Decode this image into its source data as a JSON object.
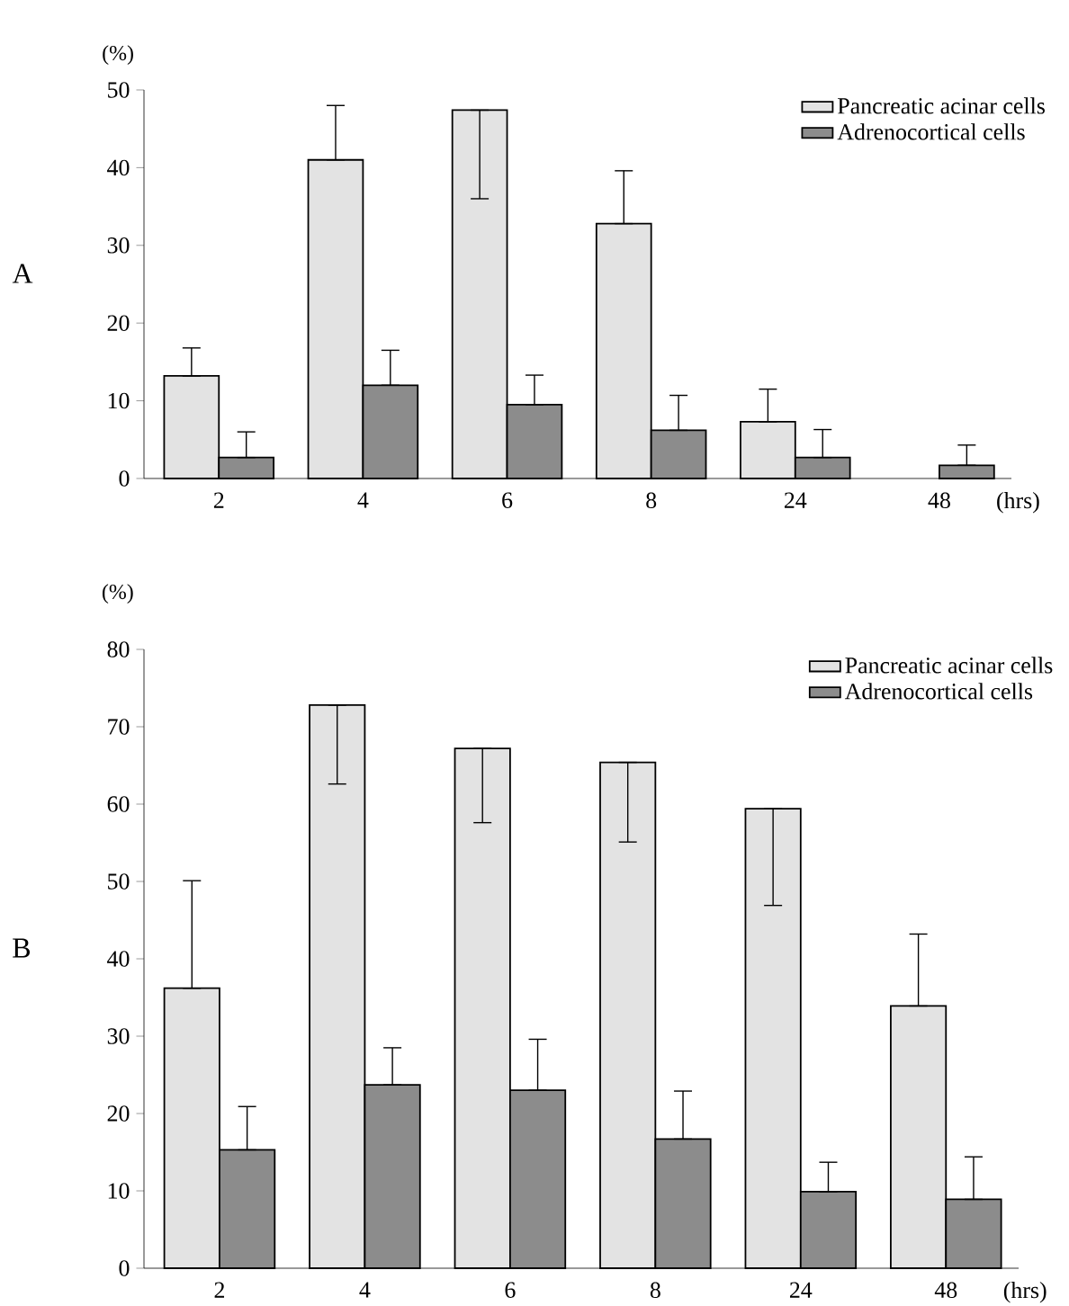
{
  "chart_data": [
    {
      "type": "bar",
      "title": "A",
      "ylabel": "(%)",
      "xlabel": "(hrs)",
      "categories": [
        "2",
        "4",
        "6",
        "8",
        "24",
        "48"
      ],
      "ylim": [
        0,
        50
      ],
      "yticks": [
        0,
        10,
        20,
        30,
        40,
        50
      ],
      "legend": "top right",
      "grid": false,
      "series": [
        {
          "name": "Pancreatic acinar cells",
          "color": "#e3e3e3",
          "values": [
            13.2,
            41,
            47.4,
            32.8,
            7.3,
            null
          ],
          "errors": [
            [
              13.2,
              16.8
            ],
            [
              41,
              48
            ],
            [
              36,
              47.4
            ],
            [
              32.8,
              39.6
            ],
            [
              7.3,
              11.5
            ],
            null
          ]
        },
        {
          "name": "Adrenocortical cells",
          "color": "#8c8c8c",
          "values": [
            2.7,
            12,
            9.5,
            6.2,
            2.7,
            1.7
          ],
          "errors": [
            [
              2.7,
              6
            ],
            [
              12,
              16.5
            ],
            [
              9.5,
              13.3
            ],
            [
              6.2,
              10.7
            ],
            [
              2.7,
              6.3
            ],
            [
              1.7,
              4.3
            ]
          ]
        }
      ]
    },
    {
      "type": "bar",
      "title": "B",
      "ylabel": "(%)",
      "xlabel": "(hrs)",
      "categories": [
        "2",
        "4",
        "6",
        "8",
        "24",
        "48"
      ],
      "ylim": [
        0,
        80
      ],
      "yticks": [
        0,
        10,
        20,
        30,
        40,
        50,
        60,
        70,
        80
      ],
      "legend": "top right",
      "grid": false,
      "series": [
        {
          "name": "Pancreatic acinar cells",
          "color": "#e3e3e3",
          "values": [
            36.2,
            72.8,
            67.2,
            65.4,
            59.4,
            33.9
          ],
          "errors": [
            [
              36.2,
              50.1
            ],
            [
              62.6,
              72.8
            ],
            [
              57.6,
              67.2
            ],
            [
              55.1,
              65.4
            ],
            [
              46.9,
              59.4
            ],
            [
              33.9,
              43.2
            ]
          ]
        },
        {
          "name": "Adrenocortical cells",
          "color": "#8c8c8c",
          "values": [
            15.3,
            23.7,
            23,
            16.7,
            9.9,
            8.9
          ],
          "errors": [
            [
              15.3,
              20.9
            ],
            [
              23.7,
              28.5
            ],
            [
              23,
              29.6
            ],
            [
              16.7,
              22.9
            ],
            [
              9.9,
              13.7
            ],
            [
              8.9,
              14.4
            ]
          ]
        }
      ]
    }
  ]
}
